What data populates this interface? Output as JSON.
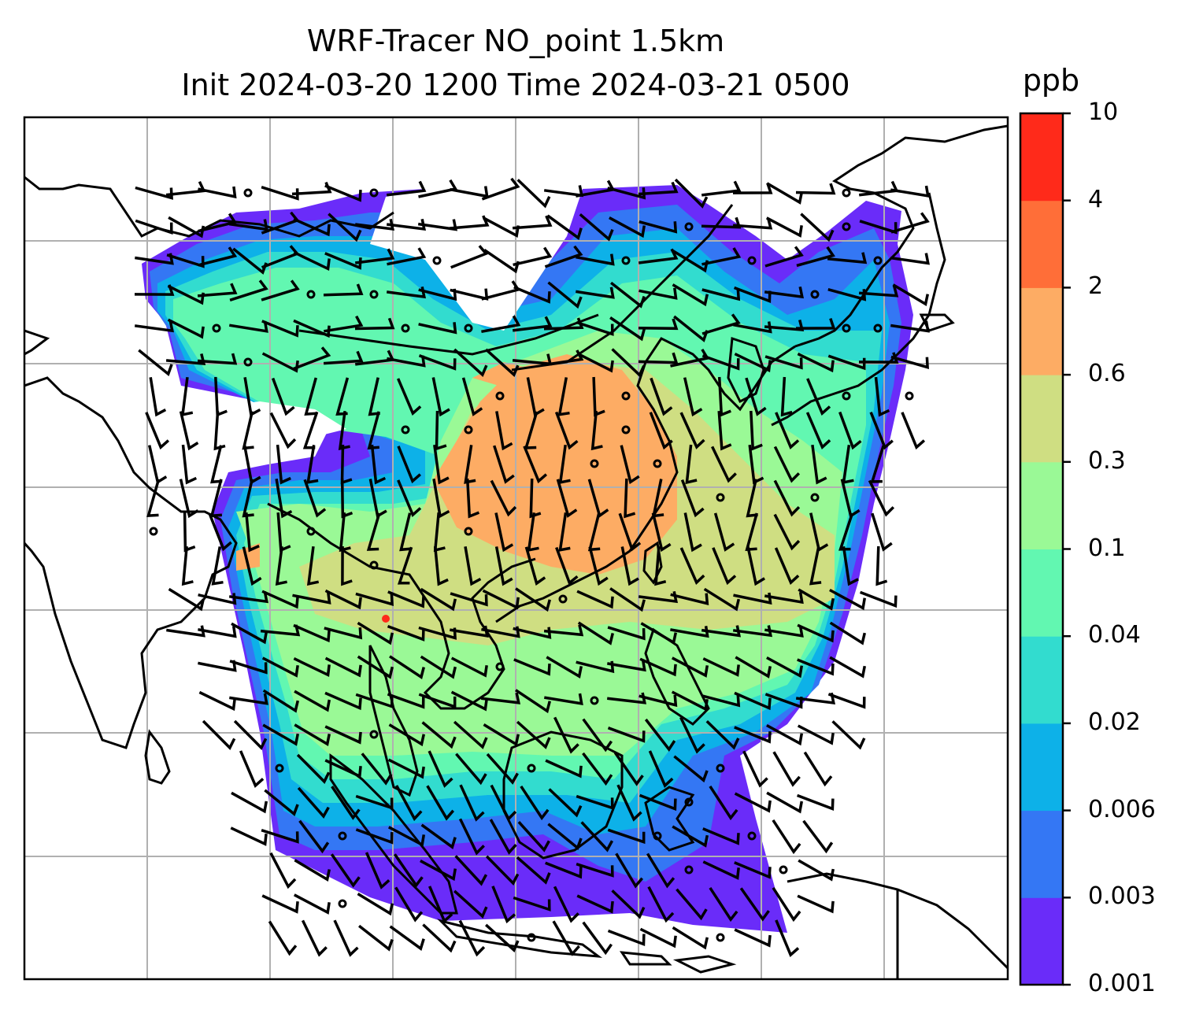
{
  "title": {
    "line1": "WRF-Tracer NO_point 1.5km",
    "line2": "Init 2024-03-20 1200 Time 2024-03-21 0500"
  },
  "colorbar": {
    "label": "ppb",
    "levels": [
      "0.001",
      "0.003",
      "0.006",
      "0.02",
      "0.04",
      "0.1",
      "0.3",
      "0.6",
      "2",
      "4",
      "10"
    ],
    "colors": [
      "#6a2cf9",
      "#3477f4",
      "#0db1e8",
      "#32dccf",
      "#62f7b1",
      "#9af996",
      "#cfde82",
      "#fdac64",
      "#ff6e38",
      "#ff2a1a"
    ]
  },
  "map": {
    "projection_box": "Southeast Asia / East Asia domain",
    "gridlines": true,
    "coastlines": true,
    "wind_barbs": true
  }
}
